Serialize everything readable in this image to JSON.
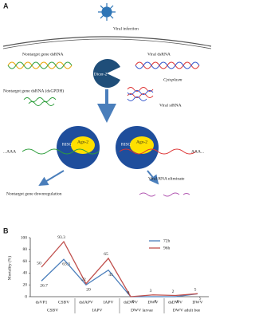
{
  "diagram": {
    "panel": "A",
    "infection": "Viral infection",
    "host_dsrna": "Nontarget gene dsRNA",
    "viral_dsrna": "Viral dsRNA",
    "dicer": "Dicer-2",
    "cytoplasm": "Cytoplasm",
    "host_dsrna_named": "Nontarget gene dsRNA (dsGPDH)",
    "sirna": "Viral siRNA",
    "ago_left": "Ago-2",
    "ago_right": "Ago-2",
    "risc_left": "RISC",
    "risc_right": "RISC",
    "polya_left": "...AAA",
    "polya_right": "AAA...",
    "downregulation": "Nontarget gene downregulation",
    "eliminate": "Viral RNA eliminate"
  },
  "chart_data": {
    "type": "line",
    "panel": "B",
    "y_label": "Mortality (%)",
    "categories": [
      "dsVP1",
      "CSBV",
      "dsIAPV",
      "IAPV",
      "dsDWV",
      "DWV",
      "dsDWV",
      "DWV"
    ],
    "groups": [
      "CSBV",
      "IAPV",
      "DWV larvae",
      "DWV adult bee"
    ],
    "series": [
      {
        "name": "72h",
        "color": "#4a7ebb",
        "values": [
          26.7,
          63.3,
          20,
          45,
          0,
          0,
          0,
          5
        ]
      },
      {
        "name": "96h",
        "color": "#c0504d",
        "values": [
          50,
          93.3,
          22,
          65,
          0,
          3,
          2,
          5
        ]
      }
    ],
    "ylim": [
      0,
      100
    ],
    "yticks": [
      0,
      20,
      40,
      60,
      80,
      100
    ],
    "legend": "upper right"
  }
}
